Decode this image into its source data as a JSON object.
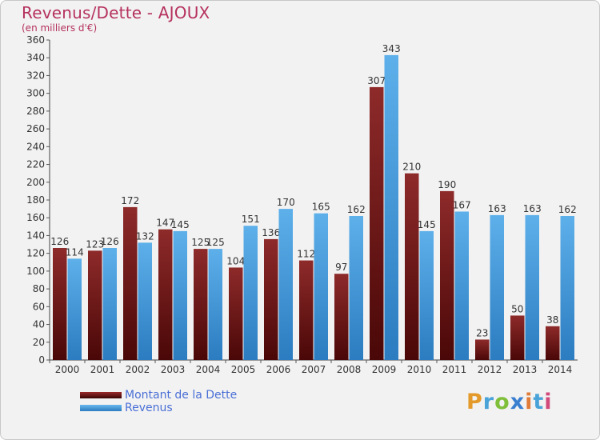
{
  "title": "Revenus/Dette - AJOUX",
  "subtitle": "(en milliers d'€)",
  "legend": {
    "debt_label": "Montant de la Dette",
    "revenue_label": "Revenus"
  },
  "brand": {
    "p": "P",
    "r": "r",
    "o": "o",
    "x": "x",
    "i1": "i",
    "t": "t",
    "i2": "i"
  },
  "colors": {
    "debt": "#7a1a1a",
    "revenue": "#3e98d8",
    "title": "#b5315e",
    "legend_text": "#4a6fd6"
  },
  "chart_data": {
    "type": "bar",
    "categories": [
      "2000",
      "2001",
      "2002",
      "2003",
      "2004",
      "2005",
      "2006",
      "2007",
      "2008",
      "2009",
      "2010",
      "2011",
      "2012",
      "2013",
      "2014"
    ],
    "series": [
      {
        "name": "Montant de la Dette",
        "values": [
          126,
          123,
          172,
          147,
          125,
          104,
          136,
          112,
          97,
          307,
          210,
          190,
          23,
          50,
          38
        ]
      },
      {
        "name": "Revenus",
        "values": [
          114,
          126,
          132,
          145,
          125,
          151,
          170,
          165,
          162,
          343,
          145,
          167,
          163,
          163,
          162
        ]
      }
    ],
    "ylim": [
      0,
      360
    ],
    "yticks": [
      0,
      20,
      40,
      60,
      80,
      100,
      120,
      140,
      160,
      180,
      200,
      220,
      240,
      260,
      280,
      300,
      320,
      340,
      360
    ],
    "grid": false,
    "legend_position": "bottom-left"
  }
}
